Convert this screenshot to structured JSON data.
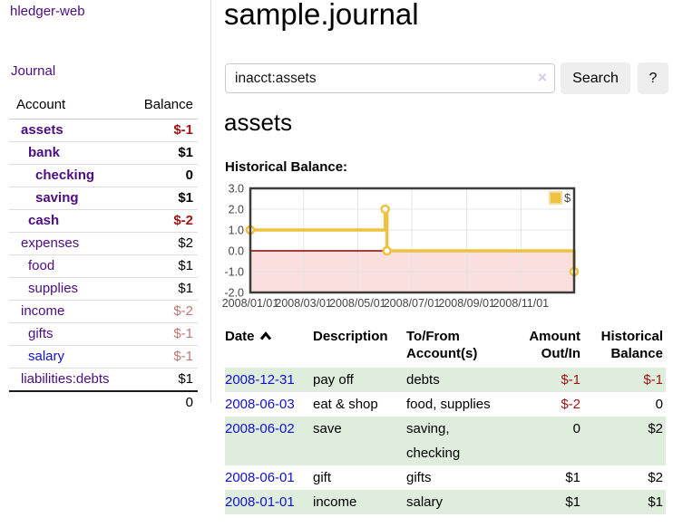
{
  "app": {
    "title": "hledger-web"
  },
  "sidebar": {
    "journal_link": "Journal",
    "accounts": {
      "header_account": "Account",
      "header_balance": "Balance",
      "rows": [
        {
          "name": "assets",
          "depth": 1,
          "bold": true,
          "balance": "$-1",
          "balance_style": "neg"
        },
        {
          "name": "bank",
          "depth": 2,
          "bold": true,
          "balance": "$1",
          "balance_style": "pos"
        },
        {
          "name": "checking",
          "depth": 3,
          "bold": true,
          "balance": "0",
          "balance_style": "pos"
        },
        {
          "name": "saving",
          "depth": 3,
          "bold": true,
          "balance": "$1",
          "balance_style": "pos"
        },
        {
          "name": "cash",
          "depth": 2,
          "bold": true,
          "balance": "$-2",
          "balance_style": "neg"
        },
        {
          "name": "expenses",
          "depth": 1,
          "bold": false,
          "balance": "$2",
          "balance_style": "pos"
        },
        {
          "name": "food",
          "depth": 2,
          "bold": false,
          "balance": "$1",
          "balance_style": "pos"
        },
        {
          "name": "supplies",
          "depth": 2,
          "bold": false,
          "balance": "$1",
          "balance_style": "pos"
        },
        {
          "name": "income",
          "depth": 1,
          "bold": false,
          "balance": "$-2",
          "balance_style": "rose"
        },
        {
          "name": "gifts",
          "depth": 2,
          "bold": false,
          "balance": "$-1",
          "balance_style": "rose"
        },
        {
          "name": "salary",
          "depth": 2,
          "bold": false,
          "balance": "$-1",
          "balance_style": "rose",
          "link_style": "unvisited"
        },
        {
          "name": "liabilities:debts",
          "depth": 1,
          "bold": false,
          "balance": "$1",
          "balance_style": "pos"
        }
      ],
      "total": "0"
    }
  },
  "header": {
    "title": "sample.journal"
  },
  "search": {
    "value": "inacct:assets",
    "clear_icon": "×",
    "button_label": "Search",
    "help_label": "?"
  },
  "account_page": {
    "heading": "assets",
    "chart_title": "Historical Balance:"
  },
  "chart_data": {
    "type": "line",
    "step": true,
    "title": "Historical Balance",
    "legend": {
      "label": "$",
      "position": "top-right"
    },
    "series": [
      {
        "name": "$",
        "color": "#edc240",
        "points": [
          [
            "2008-01-01",
            1
          ],
          [
            "2008-06-01",
            2
          ],
          [
            "2008-06-03",
            0
          ],
          [
            "2008-12-31",
            -1
          ]
        ]
      }
    ],
    "x_range": [
      "2008-01-01",
      "2008-12-31"
    ],
    "x_ticks": [
      "2008/01/01",
      "2008/03/01",
      "2008/05/01",
      "2008/07/01",
      "2008/09/01",
      "2008/11/01"
    ],
    "y_ticks": [
      "3.0",
      "2.0",
      "1.0",
      "0.0",
      "-1.0",
      "-2.0"
    ],
    "ylim": [
      -2,
      3
    ],
    "grid": true,
    "negative_region_color": "#fbdede",
    "zero_line_color": "#8b0000"
  },
  "register": {
    "columns": [
      {
        "label": "Date",
        "align": "left",
        "sort": "ascending"
      },
      {
        "label": "Description",
        "align": "left"
      },
      {
        "label": "To/From Account(s)",
        "align": "left"
      },
      {
        "label": "Amount Out/In",
        "align": "right"
      },
      {
        "label": "Historical Balance",
        "align": "right"
      }
    ],
    "rows": [
      {
        "date": "2008-12-31",
        "description": "pay off",
        "accounts": "debts",
        "amount": "$-1",
        "amount_style": "neg",
        "balance": "$-1",
        "balance_style": "neg"
      },
      {
        "date": "2008-06-03",
        "description": "eat & shop",
        "accounts": "food, supplies",
        "amount": "$-2",
        "amount_style": "neg",
        "balance": "0",
        "balance_style": "pos"
      },
      {
        "date": "2008-06-02",
        "description": "save",
        "accounts": "saving,\nchecking",
        "amount": "0",
        "amount_style": "pos",
        "balance": "$2",
        "balance_style": "pos"
      },
      {
        "date": "2008-06-01",
        "description": "gift",
        "accounts": "gifts",
        "amount": "$1",
        "amount_style": "pos",
        "balance": "$2",
        "balance_style": "pos"
      },
      {
        "date": "2008-01-01",
        "description": "income",
        "accounts": "salary",
        "amount": "$1",
        "amount_style": "pos",
        "balance": "$1",
        "balance_style": "pos"
      }
    ]
  },
  "colors": {
    "link_purple": "#4b0d83",
    "link_blue": "#1111cc",
    "negative": "#9e1414",
    "negative_faded": "#be7878",
    "row_green": "#dfeddd",
    "chart_line": "#edc240",
    "button_bg": "#eeeeee"
  }
}
